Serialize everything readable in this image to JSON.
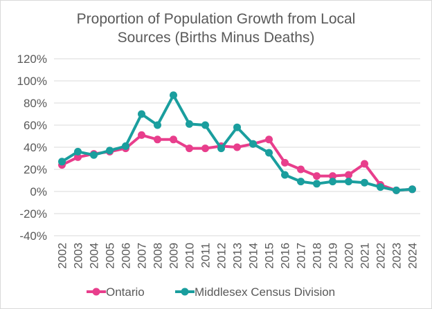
{
  "chart_data": {
    "type": "line",
    "title_lines": [
      "Proportion of Population Growth from Local",
      "Sources (Births Minus Deaths)"
    ],
    "xlabel": "",
    "ylabel": "",
    "ylim": [
      -40,
      120
    ],
    "ytick_step": 20,
    "yticks": [
      "120%",
      "100%",
      "80%",
      "60%",
      "40%",
      "20%",
      "0%",
      "-20%",
      "-40%"
    ],
    "grid": true,
    "legend_position": "bottom",
    "categories": [
      "2002",
      "2003",
      "2004",
      "2005",
      "2006",
      "2007",
      "2008",
      "2009",
      "2010",
      "2011",
      "2012",
      "2013",
      "2014",
      "2015",
      "2016",
      "2017",
      "2018",
      "2019",
      "2020",
      "2021",
      "2022",
      "2023",
      "2024"
    ],
    "series": [
      {
        "name": "Ontario",
        "color": "#e83e8c",
        "values": [
          24,
          31,
          34,
          36,
          39,
          51,
          47,
          47,
          39,
          39,
          41,
          40,
          43,
          47,
          26,
          20,
          14,
          14,
          15,
          25,
          6,
          1,
          2
        ]
      },
      {
        "name": "Middlesex Census Division",
        "color": "#1a9e9e",
        "values": [
          27,
          36,
          33,
          37,
          41,
          70,
          60,
          87,
          61,
          60,
          39,
          58,
          43,
          35,
          15,
          9,
          7,
          9,
          9,
          8,
          4,
          1,
          2
        ]
      }
    ]
  }
}
